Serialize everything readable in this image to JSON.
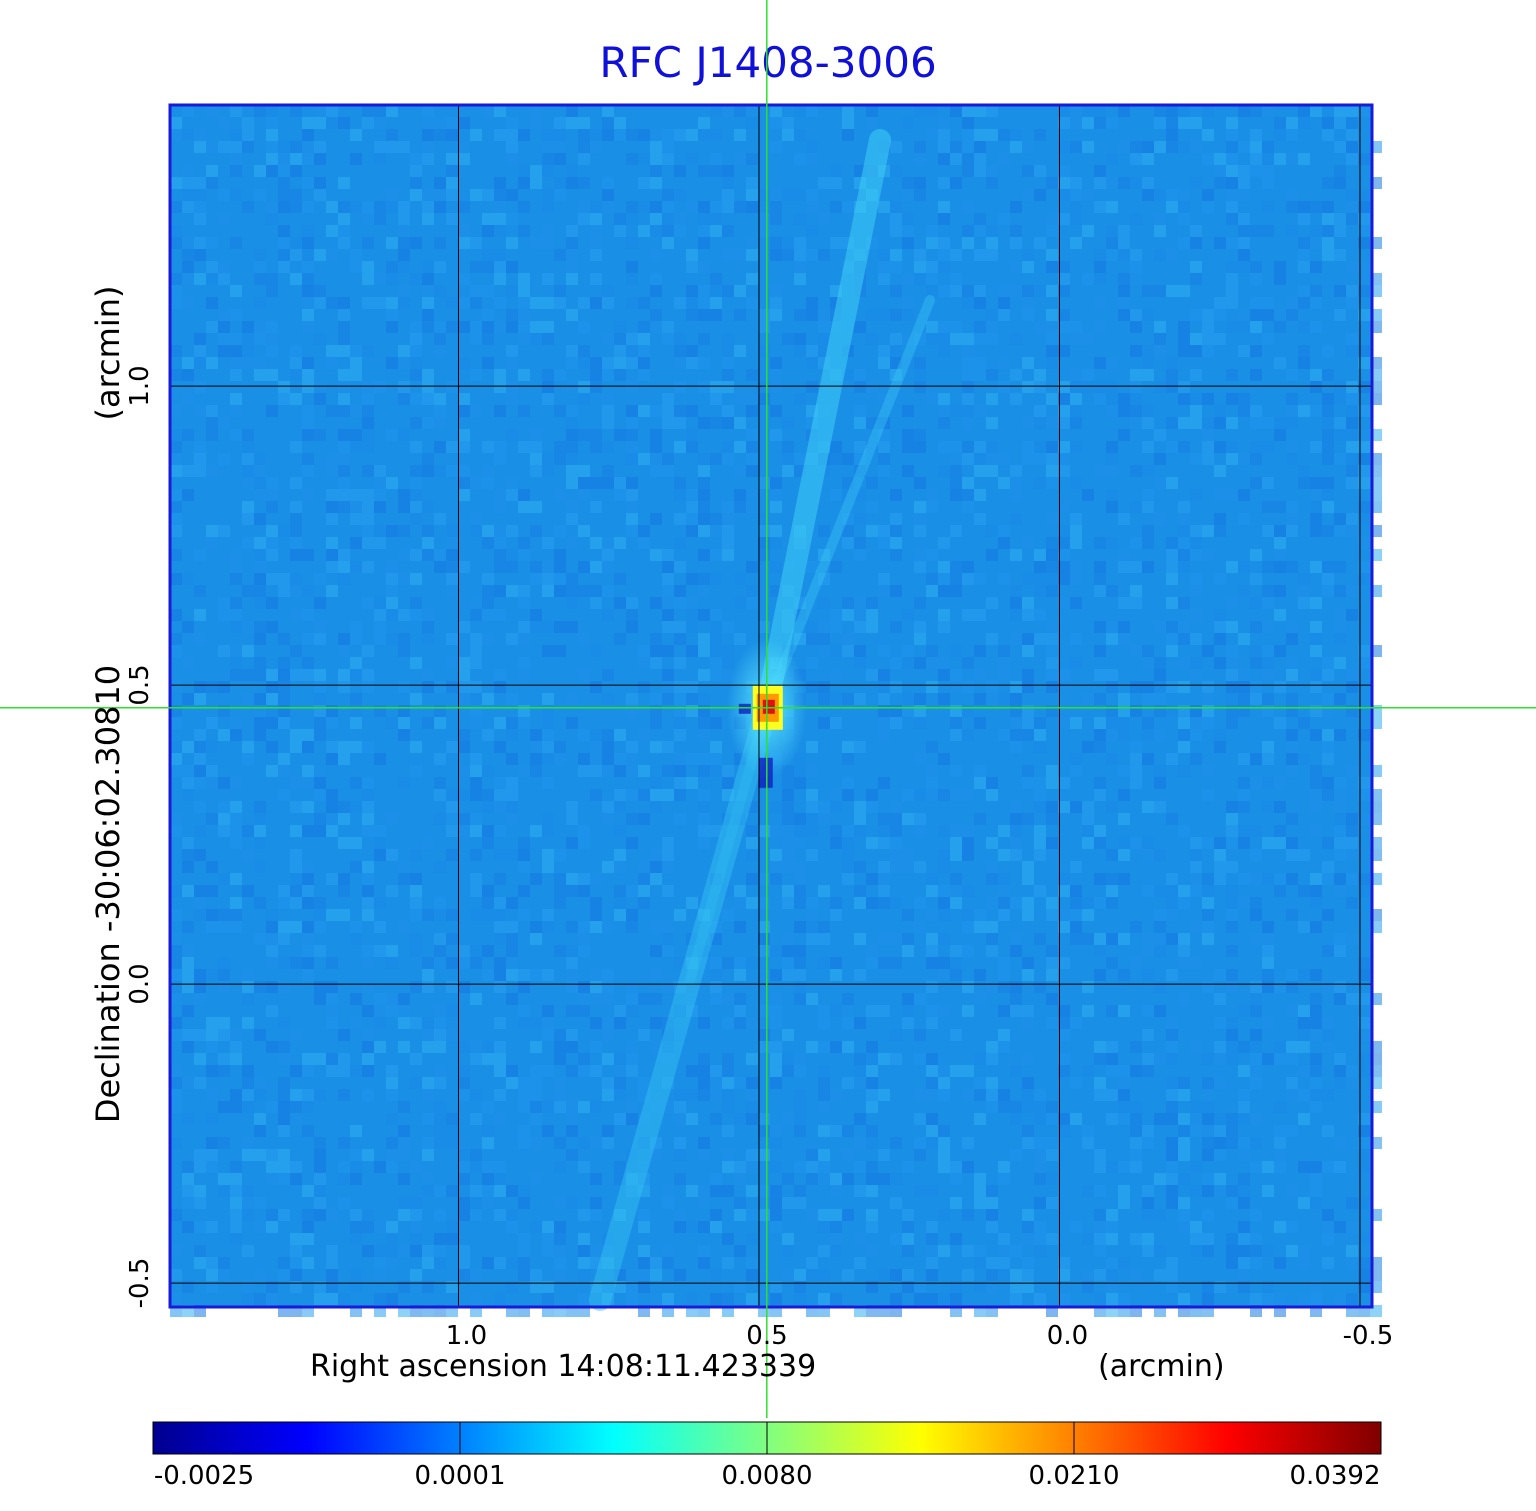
{
  "chart_data": {
    "type": "heatmap",
    "title": "RFC J1408-3006",
    "xlabel": "Right ascension  14:08:11.423339",
    "xunit": "(arcmin)",
    "ylabel": "Declination  -30:06:02.30810",
    "yunit": "(arcmin)",
    "x_ticks": [
      "1.0",
      "0.5",
      "0.0",
      "-0.5"
    ],
    "x_tick_values": [
      1.0,
      0.5,
      0.0,
      -0.5
    ],
    "y_ticks": [
      "1.0",
      "0.5",
      "0.0",
      "-0.5"
    ],
    "y_tick_values": [
      1.0,
      0.5,
      0.0,
      -0.5
    ],
    "xlim": [
      1.48,
      -0.52
    ],
    "ylim": [
      -0.54,
      1.47
    ],
    "grid": true,
    "crosshair": {
      "x": 0.487,
      "y": 0.462
    },
    "peak": {
      "x": 0.487,
      "y": 0.462,
      "value": 0.0392
    },
    "colorbar": {
      "ticks": [
        "-0.0025",
        "0.0001",
        "0.0080",
        "0.0210",
        "0.0392"
      ],
      "colormap": [
        "#00008f",
        "#0000ff",
        "#0080ff",
        "#00ffff",
        "#80ff80",
        "#ffff00",
        "#ff8000",
        "#ff0000",
        "#800000"
      ]
    },
    "colors": {
      "background_map": "#1a8fe6",
      "frame": "#1a1ad9",
      "grid": "#000000",
      "crosshair": "#2ee02e",
      "title": "#1010d8"
    }
  }
}
